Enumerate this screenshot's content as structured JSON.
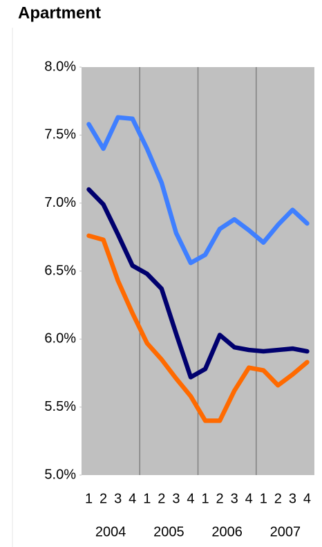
{
  "chart_data": {
    "type": "line",
    "title": "Apartment",
    "categories": [
      "1",
      "2",
      "3",
      "4",
      "1",
      "2",
      "3",
      "4",
      "1",
      "2",
      "3",
      "4",
      "1",
      "2",
      "3",
      "4"
    ],
    "category_groups": [
      "2004",
      "2005",
      "2006",
      "2007"
    ],
    "series": [
      {
        "color": "#3f7fff",
        "values": [
          7.58,
          7.4,
          7.63,
          7.62,
          7.4,
          7.15,
          6.78,
          6.56,
          6.62,
          6.81,
          6.88,
          6.8,
          6.71,
          6.84,
          6.95,
          6.85
        ]
      },
      {
        "color": "#00006e",
        "values": [
          7.1,
          6.99,
          6.77,
          6.54,
          6.48,
          6.37,
          6.04,
          5.72,
          5.78,
          6.03,
          5.94,
          5.92,
          5.91,
          5.92,
          5.93,
          5.91
        ]
      },
      {
        "color": "#ff6a00",
        "values": [
          6.76,
          6.73,
          6.43,
          6.19,
          5.97,
          5.85,
          5.71,
          5.58,
          5.4,
          5.4,
          5.62,
          5.79,
          5.77,
          5.66,
          5.74,
          5.83
        ]
      }
    ],
    "ylim": [
      5.0,
      8.0
    ],
    "yticks": [
      {
        "value": 5.0,
        "label": "5.0%"
      },
      {
        "value": 5.5,
        "label": "5.5%"
      },
      {
        "value": 6.0,
        "label": "6.0%"
      },
      {
        "value": 6.5,
        "label": "6.5%"
      },
      {
        "value": 7.0,
        "label": "7.0%"
      },
      {
        "value": 7.5,
        "label": "7.5%"
      },
      {
        "value": 8.0,
        "label": "8.0%"
      }
    ],
    "plot_background": "#c0c0c0"
  }
}
